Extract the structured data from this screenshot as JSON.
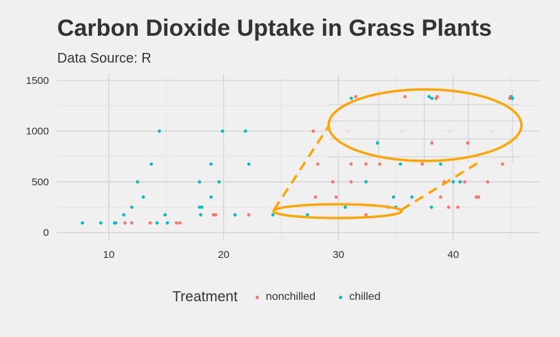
{
  "title": "Carbon Dioxide Uptake in Grass Plants",
  "subtitle": "Data Source: R",
  "legend": {
    "title": "Treatment",
    "items": [
      {
        "label": "nonchilled",
        "color": "#F8766D"
      },
      {
        "label": "chilled",
        "color": "#00BFC4"
      }
    ]
  },
  "annotation_color": "#FFA500",
  "chart_data": {
    "type": "scatter",
    "xlim": [
      5.5,
      47.5
    ],
    "ylim": [
      -80,
      1560
    ],
    "x_ticks": [
      10,
      20,
      30,
      40
    ],
    "y_ticks": [
      0,
      500,
      1000,
      1500
    ],
    "grid": true,
    "legend_position": "bottom",
    "series": [
      {
        "name": "nonchilled",
        "color": "#F8766D",
        "points": [
          [
            11.4,
            95
          ],
          [
            12.0,
            95
          ],
          [
            13.6,
            95
          ],
          [
            15.9,
            95
          ],
          [
            16.2,
            95
          ],
          [
            19.1,
            175
          ],
          [
            19.3,
            175
          ],
          [
            22.2,
            175
          ],
          [
            28.0,
            350
          ],
          [
            29.8,
            350
          ],
          [
            32.4,
            175
          ],
          [
            34.3,
            250
          ],
          [
            38.9,
            350
          ],
          [
            39.6,
            250
          ],
          [
            40.4,
            250
          ],
          [
            42.0,
            350
          ],
          [
            42.2,
            350
          ],
          [
            43.0,
            500
          ],
          [
            41.0,
            500
          ],
          [
            39.2,
            500
          ],
          [
            31.1,
            500
          ],
          [
            29.5,
            500
          ],
          [
            33.6,
            675
          ],
          [
            32.4,
            675
          ],
          [
            31.1,
            675
          ],
          [
            28.2,
            675
          ],
          [
            37.3,
            675
          ],
          [
            44.3,
            675
          ],
          [
            27.8,
            1000
          ],
          [
            30.9,
            1000
          ],
          [
            35.5,
            1000
          ],
          [
            38.1,
            900
          ],
          [
            41.4,
            900
          ],
          [
            43.4,
            1000
          ],
          [
            31.5,
            1340
          ],
          [
            35.8,
            1340
          ],
          [
            38.6,
            1340
          ],
          [
            39.7,
            1000
          ],
          [
            45.0,
            1340
          ]
        ]
      },
      {
        "name": "chilled",
        "color": "#00BFC4",
        "points": [
          [
            7.7,
            95
          ],
          [
            9.3,
            95
          ],
          [
            10.5,
            95
          ],
          [
            10.6,
            95
          ],
          [
            14.2,
            95
          ],
          [
            15.1,
            95
          ],
          [
            11.3,
            175
          ],
          [
            14.9,
            175
          ],
          [
            18.0,
            175
          ],
          [
            21.0,
            175
          ],
          [
            24.3,
            175
          ],
          [
            27.3,
            175
          ],
          [
            12.0,
            250
          ],
          [
            17.9,
            250
          ],
          [
            18.1,
            250
          ],
          [
            30.6,
            250
          ],
          [
            35.0,
            250
          ],
          [
            38.1,
            250
          ],
          [
            13.0,
            350
          ],
          [
            18.9,
            350
          ],
          [
            34.8,
            350
          ],
          [
            36.4,
            350
          ],
          [
            12.5,
            500
          ],
          [
            17.9,
            500
          ],
          [
            19.6,
            500
          ],
          [
            32.4,
            500
          ],
          [
            40.0,
            500
          ],
          [
            40.6,
            500
          ],
          [
            13.7,
            675
          ],
          [
            18.9,
            675
          ],
          [
            22.2,
            675
          ],
          [
            35.4,
            675
          ],
          [
            38.9,
            675
          ],
          [
            14.4,
            1000
          ],
          [
            19.9,
            1000
          ],
          [
            21.9,
            1000
          ],
          [
            33.4,
            900
          ],
          [
            37.9,
            1340
          ],
          [
            45.1,
            1340
          ]
        ]
      }
    ]
  }
}
